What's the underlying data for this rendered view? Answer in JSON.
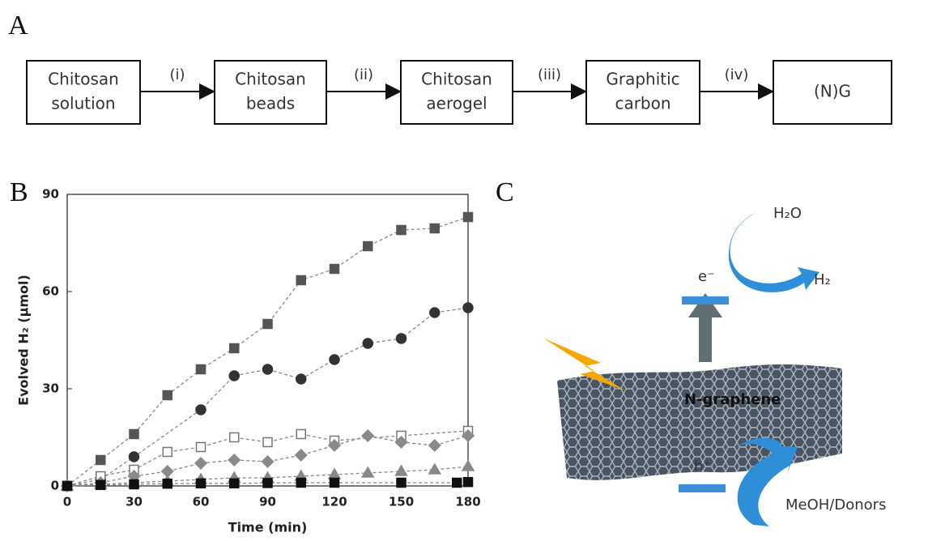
{
  "panel_a": {
    "letter": "A",
    "nodes": [
      {
        "lines": [
          "Chitosan",
          "solution"
        ]
      },
      {
        "lines": [
          "Chitosan",
          "beads"
        ]
      },
      {
        "lines": [
          "Chitosan",
          "aerogel"
        ]
      },
      {
        "lines": [
          "Graphitic",
          "carbon"
        ]
      },
      {
        "lines": [
          "(N)G"
        ]
      }
    ],
    "edges": [
      "(i)",
      "(ii)",
      "(iii)",
      "(iv)"
    ]
  },
  "chart_data": {
    "type": "scatter-line",
    "panel_letter": "B",
    "xlabel": "Time (min)",
    "ylabel": "Evolved H₂ (μmol)",
    "xlim": [
      0,
      180
    ],
    "xticks": [
      0,
      30,
      60,
      90,
      120,
      150,
      180
    ],
    "ylim": [
      0,
      90
    ],
    "yticks": [
      0,
      30,
      60,
      90
    ],
    "series": [
      {
        "marker": "square",
        "color": "#555555",
        "filled": true,
        "x": [
          0,
          15,
          30,
          45,
          60,
          75,
          90,
          105,
          120,
          135,
          150,
          165,
          180
        ],
        "values": [
          0,
          8,
          16,
          28,
          36,
          42.5,
          50,
          63.5,
          67,
          74,
          79,
          79.5,
          83
        ]
      },
      {
        "marker": "circle",
        "color": "#333333",
        "filled": true,
        "x": [
          0,
          15,
          30,
          60,
          75,
          90,
          105,
          120,
          135,
          150,
          165,
          180
        ],
        "values": [
          0,
          2,
          9,
          23.5,
          34,
          36,
          33,
          39,
          44,
          45.5,
          53.5,
          55
        ]
      },
      {
        "marker": "square",
        "color": "#777777",
        "filled": false,
        "x": [
          0,
          15,
          30,
          45,
          60,
          75,
          90,
          105,
          120,
          150,
          180
        ],
        "values": [
          0,
          3,
          5,
          10.5,
          12,
          15,
          13.5,
          16,
          14,
          15.5,
          17
        ]
      },
      {
        "marker": "diamond",
        "color": "#8a8a8a",
        "filled": true,
        "x": [
          0,
          15,
          30,
          45,
          60,
          75,
          90,
          105,
          120,
          135,
          150,
          165,
          180
        ],
        "values": [
          0,
          1,
          3,
          4.5,
          7,
          8,
          7.5,
          9.5,
          12.5,
          15.5,
          13.5,
          12.5,
          15.5
        ]
      },
      {
        "marker": "triangle",
        "color": "#888888",
        "filled": true,
        "x": [
          0,
          15,
          30,
          45,
          60,
          75,
          90,
          105,
          120,
          135,
          150,
          165,
          180
        ],
        "values": [
          0,
          0.5,
          1,
          1.5,
          2,
          2.5,
          2.5,
          3,
          3.5,
          4,
          4.5,
          5,
          6
        ]
      },
      {
        "marker": "square",
        "color": "#111111",
        "filled": true,
        "x": [
          0,
          15,
          30,
          45,
          60,
          75,
          90,
          105,
          120,
          150,
          175,
          180
        ],
        "values": [
          0,
          0.3,
          0.5,
          0.7,
          0.8,
          0.8,
          0.9,
          1,
          1,
          1,
          1,
          1.2
        ]
      }
    ]
  },
  "panel_c": {
    "letter": "C",
    "labels": [
      "H₂O",
      "e⁻",
      "H₂",
      "N-graphene",
      "h⁺",
      "MeOH/Donors"
    ]
  }
}
